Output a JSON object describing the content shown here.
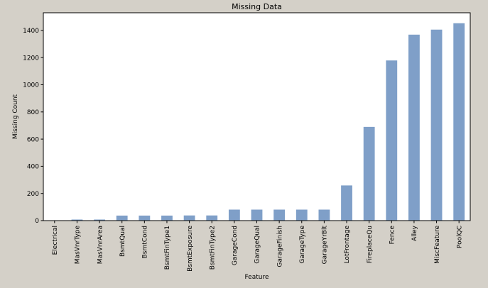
{
  "chart_data": {
    "type": "bar",
    "title": "Missing Data",
    "xlabel": "Feature",
    "ylabel": "Missing Count",
    "ylim": [
      0,
      1530
    ],
    "yticks": [
      0,
      200,
      400,
      600,
      800,
      1000,
      1200,
      1400
    ],
    "grid": false,
    "legend": "none",
    "bar_color": "#7f9fc8",
    "categories": [
      "Electrical",
      "MasVnrType",
      "MasVnrArea",
      "BsmtQual",
      "BsmtCond",
      "BsmtFinType1",
      "BsmtExposure",
      "BsmtFinType2",
      "GarageCond",
      "GarageQual",
      "GarageFinish",
      "GarageType",
      "GarageYrBlt",
      "LotFrontage",
      "FireplaceQu",
      "Fence",
      "Alley",
      "MiscFeature",
      "PoolQC"
    ],
    "values": [
      1,
      8,
      8,
      37,
      37,
      37,
      38,
      38,
      81,
      81,
      81,
      81,
      81,
      259,
      690,
      1179,
      1369,
      1406,
      1453
    ]
  }
}
